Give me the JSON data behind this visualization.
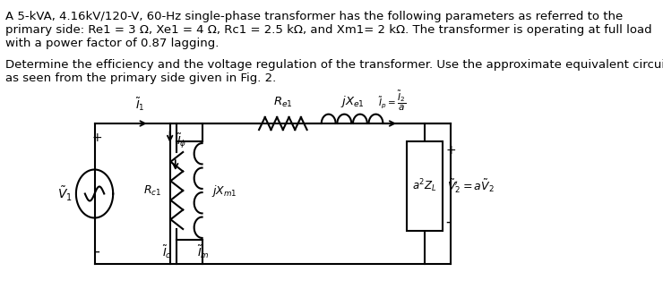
{
  "text_block1": "A 5-kVA, 4.16kV/120-V, 60-Hz single-phase transformer has the following parameters as referred to the\nprimary side: Re1 = 3 Ω, Xe1 = 4 Ω, Rc1 = 2.5 kΩ, and Xm1= 2 kΩ. The transformer is operating at full load\nwith a power factor of 0.87 lagging.",
  "text_block2": "Determine the efficiency and the voltage regulation of the transformer. Use the approximate equivalent circuit\nas seen from the primary side given in Fig. 2.",
  "bg_color": "#ffffff",
  "text_color": "#000000",
  "font_size_text": 9.5
}
